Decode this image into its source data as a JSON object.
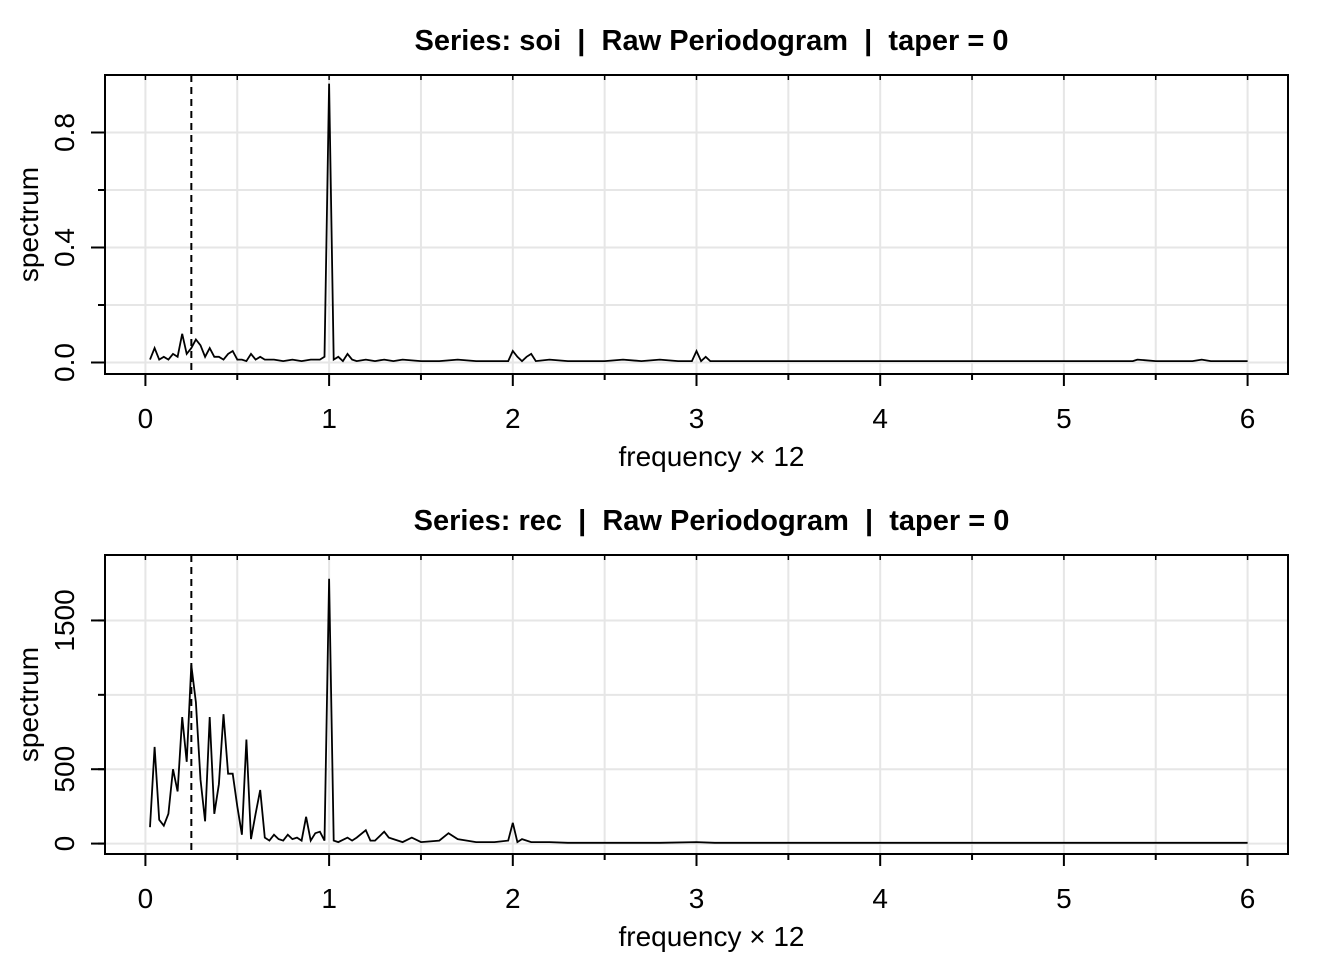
{
  "chart_data": [
    {
      "type": "line",
      "title": "Series: soi  |  Raw Periodogram  |  taper = 0",
      "xlabel": "frequency × 12",
      "ylabel": "spectrum",
      "xlim": [
        -0.22,
        6.22
      ],
      "ylim": [
        -0.04,
        1.0
      ],
      "xticks": [
        0,
        1,
        2,
        3,
        4,
        5,
        6
      ],
      "xtick_labels": [
        "0",
        "1",
        "2",
        "3",
        "4",
        "5",
        "6"
      ],
      "yticks": [
        0.0,
        0.4,
        0.8
      ],
      "ytick_labels": [
        "0.0",
        "0.4",
        "0.8"
      ],
      "grid": true,
      "reference_line": {
        "x": 0.25,
        "style": "dashed"
      },
      "series": [
        {
          "x": [
            0.025,
            0.05,
            0.075,
            0.1,
            0.125,
            0.15,
            0.175,
            0.2,
            0.225,
            0.25,
            0.275,
            0.3,
            0.325,
            0.35,
            0.375,
            0.4,
            0.425,
            0.45,
            0.475,
            0.5,
            0.525,
            0.55,
            0.575,
            0.6,
            0.625,
            0.65,
            0.7,
            0.75,
            0.8,
            0.85,
            0.9,
            0.95,
            0.975,
            1.0,
            1.025,
            1.05,
            1.075,
            1.1,
            1.125,
            1.15,
            1.2,
            1.25,
            1.3,
            1.35,
            1.4,
            1.5,
            1.6,
            1.7,
            1.8,
            1.9,
            1.975,
            2.0,
            2.025,
            2.05,
            2.075,
            2.1,
            2.125,
            2.2,
            2.3,
            2.4,
            2.5,
            2.6,
            2.7,
            2.8,
            2.9,
            2.975,
            3.0,
            3.025,
            3.05,
            3.075,
            3.1,
            3.2,
            3.3,
            3.4,
            3.5,
            3.6,
            3.7,
            3.8,
            3.9,
            4.0,
            4.1,
            4.2,
            4.3,
            4.4,
            4.5,
            4.6,
            4.7,
            4.8,
            4.9,
            5.0,
            5.1,
            5.2,
            5.3,
            5.375,
            5.4,
            5.5,
            5.6,
            5.7,
            5.75,
            5.8,
            5.9,
            6.0
          ],
          "values": [
            0.01,
            0.05,
            0.01,
            0.02,
            0.01,
            0.03,
            0.02,
            0.1,
            0.03,
            0.05,
            0.08,
            0.06,
            0.02,
            0.05,
            0.02,
            0.02,
            0.01,
            0.03,
            0.04,
            0.01,
            0.01,
            0.005,
            0.03,
            0.01,
            0.02,
            0.01,
            0.01,
            0.005,
            0.01,
            0.005,
            0.01,
            0.01,
            0.02,
            0.97,
            0.01,
            0.02,
            0.005,
            0.03,
            0.01,
            0.005,
            0.01,
            0.005,
            0.01,
            0.005,
            0.01,
            0.005,
            0.005,
            0.01,
            0.005,
            0.005,
            0.005,
            0.04,
            0.02,
            0.005,
            0.02,
            0.03,
            0.005,
            0.01,
            0.005,
            0.005,
            0.005,
            0.01,
            0.005,
            0.01,
            0.005,
            0.005,
            0.04,
            0.005,
            0.02,
            0.005,
            0.005,
            0.005,
            0.005,
            0.005,
            0.005,
            0.005,
            0.005,
            0.005,
            0.005,
            0.005,
            0.005,
            0.005,
            0.005,
            0.005,
            0.005,
            0.005,
            0.005,
            0.005,
            0.005,
            0.005,
            0.005,
            0.005,
            0.005,
            0.005,
            0.01,
            0.005,
            0.005,
            0.005,
            0.01,
            0.005,
            0.005,
            0.005
          ]
        }
      ]
    },
    {
      "type": "line",
      "title": "Series: rec  |  Raw Periodogram  |  taper = 0",
      "xlabel": "frequency × 12",
      "ylabel": "spectrum",
      "xlim": [
        -0.22,
        6.22
      ],
      "ylim": [
        -70,
        1940
      ],
      "xticks": [
        0,
        1,
        2,
        3,
        4,
        5,
        6
      ],
      "xtick_labels": [
        "0",
        "1",
        "2",
        "3",
        "4",
        "5",
        "6"
      ],
      "yticks": [
        0,
        500,
        1500
      ],
      "ytick_labels": [
        "0",
        "500",
        "1500"
      ],
      "grid_y": [
        0,
        500,
        1000,
        1500
      ],
      "grid": true,
      "reference_line": {
        "x": 0.25,
        "style": "dashed"
      },
      "series": [
        {
          "x": [
            0.025,
            0.05,
            0.075,
            0.1,
            0.125,
            0.15,
            0.175,
            0.2,
            0.225,
            0.25,
            0.275,
            0.3,
            0.325,
            0.35,
            0.375,
            0.4,
            0.425,
            0.45,
            0.475,
            0.5,
            0.525,
            0.55,
            0.575,
            0.6,
            0.625,
            0.65,
            0.675,
            0.7,
            0.725,
            0.75,
            0.775,
            0.8,
            0.825,
            0.85,
            0.875,
            0.9,
            0.925,
            0.95,
            0.975,
            1.0,
            1.025,
            1.05,
            1.1,
            1.125,
            1.15,
            1.2,
            1.225,
            1.25,
            1.3,
            1.325,
            1.35,
            1.4,
            1.45,
            1.5,
            1.6,
            1.65,
            1.7,
            1.75,
            1.8,
            1.9,
            1.975,
            2.0,
            2.025,
            2.05,
            2.1,
            2.2,
            2.3,
            2.5,
            2.8,
            3.0,
            3.1,
            3.5,
            4.0,
            4.5,
            5.0,
            5.5,
            6.0
          ],
          "values": [
            110,
            650,
            160,
            120,
            200,
            500,
            350,
            850,
            550,
            1200,
            950,
            430,
            150,
            850,
            200,
            400,
            870,
            470,
            470,
            250,
            60,
            700,
            30,
            200,
            360,
            40,
            20,
            60,
            30,
            20,
            60,
            30,
            40,
            20,
            180,
            20,
            70,
            80,
            20,
            1780,
            20,
            10,
            40,
            20,
            40,
            90,
            20,
            20,
            80,
            40,
            30,
            10,
            40,
            10,
            20,
            70,
            30,
            20,
            10,
            10,
            20,
            140,
            10,
            30,
            10,
            10,
            5,
            5,
            5,
            10,
            5,
            5,
            5,
            5,
            5,
            5,
            5
          ]
        }
      ]
    }
  ]
}
